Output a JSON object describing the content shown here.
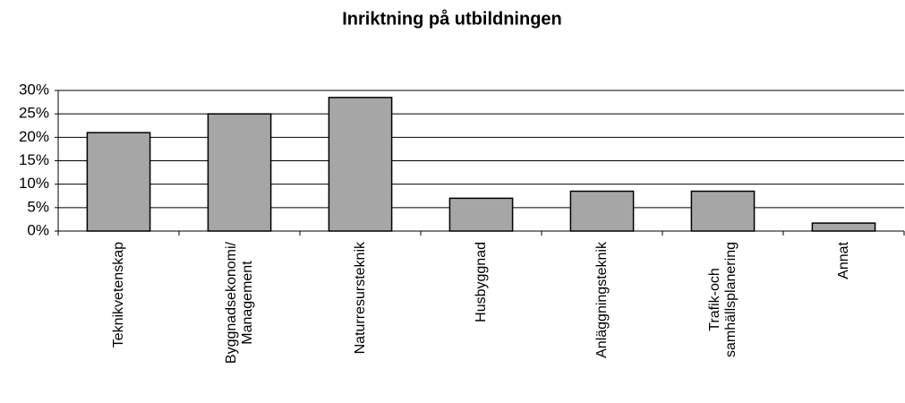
{
  "chart_data": {
    "type": "bar",
    "title": "Inriktning på utbildningen",
    "categories": [
      "Teknikvetenskap",
      "Byggnadsekonomi/\nManagement",
      "Naturresursteknik",
      "Husbyggnad",
      "Anläggningsteknik",
      "Trafik-och\nsamhällsplanering",
      "Annat"
    ],
    "values": [
      21,
      25,
      28.5,
      7,
      8.5,
      8.5,
      1.7
    ],
    "color": "#a6a6a6",
    "ylim": [
      0,
      30
    ],
    "yticks": [
      {
        "value": 0,
        "label": "0%"
      },
      {
        "value": 5,
        "label": "5%"
      },
      {
        "value": 10,
        "label": "10%"
      },
      {
        "value": 15,
        "label": "15%"
      },
      {
        "value": 20,
        "label": "20%"
      },
      {
        "value": 25,
        "label": "25%"
      },
      {
        "value": 30,
        "label": "30%"
      }
    ],
    "grid": true
  }
}
